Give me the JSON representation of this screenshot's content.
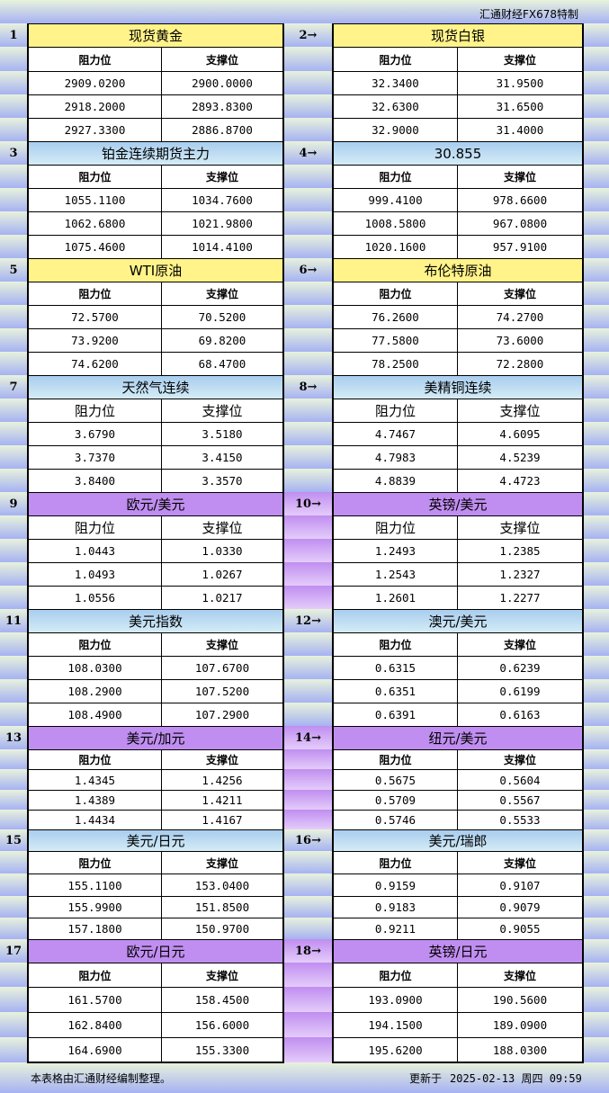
{
  "brand": "汇通财经FX678特制",
  "footer": {
    "note": "本表格由汇通财经编制整理。",
    "updated_label": "更新于",
    "updated_value": "2025-02-13 周四 09:59"
  },
  "headers": {
    "resistance": "阻力位",
    "support": "支撑位"
  },
  "colors": {
    "yellow": "#fff389",
    "blue": "#a9cdee",
    "purple": "#c08ef0",
    "row_gradient_top": "#e8f2dc",
    "row_gradient_bottom": "#a6b2f2"
  },
  "sections": [
    {
      "theme": "yellow",
      "left": {
        "num": "1",
        "title": "现货黄金",
        "rows": [
          [
            "2909.0200",
            "2900.0000"
          ],
          [
            "2918.2000",
            "2893.8300"
          ],
          [
            "2927.3300",
            "2886.8700"
          ]
        ]
      },
      "right": {
        "num": "2→",
        "title": "现货白银",
        "rows": [
          [
            "32.3400",
            "31.9500"
          ],
          [
            "32.6300",
            "31.6500"
          ],
          [
            "32.9000",
            "31.4000"
          ]
        ]
      }
    },
    {
      "theme": "blue",
      "left": {
        "num": "3",
        "title": "铂金连续期货主力",
        "rows": [
          [
            "1055.1100",
            "1034.7600"
          ],
          [
            "1062.6800",
            "1021.9800"
          ],
          [
            "1075.4600",
            "1014.4100"
          ]
        ]
      },
      "right": {
        "num": "4→",
        "title": "30.855",
        "rows": [
          [
            "999.4100",
            "978.6600"
          ],
          [
            "1008.5800",
            "967.0800"
          ],
          [
            "1020.1600",
            "957.9100"
          ]
        ]
      }
    },
    {
      "theme": "yellow",
      "left": {
        "num": "5",
        "title": "WTI原油",
        "rows": [
          [
            "72.5700",
            "70.5200"
          ],
          [
            "73.9200",
            "69.8200"
          ],
          [
            "74.6200",
            "68.4700"
          ]
        ]
      },
      "right": {
        "num": "6→",
        "title": "布伦特原油",
        "rows": [
          [
            "76.2600",
            "74.2700"
          ],
          [
            "77.5800",
            "73.6000"
          ],
          [
            "78.2500",
            "72.2800"
          ]
        ]
      }
    },
    {
      "theme": "blue",
      "left": {
        "num": "7",
        "title": "天然气连续",
        "rows": [
          [
            "3.6790",
            "3.5180"
          ],
          [
            "3.7370",
            "3.4150"
          ],
          [
            "3.8400",
            "3.3570"
          ]
        ]
      },
      "right": {
        "num": "8→",
        "title": "美精铜连续",
        "rows": [
          [
            "4.7467",
            "4.6095"
          ],
          [
            "4.7983",
            "4.5239"
          ],
          [
            "4.8839",
            "4.4723"
          ]
        ]
      }
    },
    {
      "theme": "purple",
      "left": {
        "num": "9",
        "title": "欧元/美元",
        "rows": [
          [
            "1.0443",
            "1.0330"
          ],
          [
            "1.0493",
            "1.0267"
          ],
          [
            "1.0556",
            "1.0217"
          ]
        ]
      },
      "right": {
        "num": "10→",
        "title": "英镑/美元",
        "rows": [
          [
            "1.2493",
            "1.2385"
          ],
          [
            "1.2543",
            "1.2327"
          ],
          [
            "1.2601",
            "1.2277"
          ]
        ]
      }
    },
    {
      "theme": "blue",
      "left": {
        "num": "11",
        "title": "美元指数",
        "rows": [
          [
            "108.0300",
            "107.6700"
          ],
          [
            "108.2900",
            "107.5200"
          ],
          [
            "108.4900",
            "107.2900"
          ]
        ]
      },
      "right": {
        "num": "12→",
        "title": "澳元/美元",
        "rows": [
          [
            "0.6315",
            "0.6239"
          ],
          [
            "0.6351",
            "0.6199"
          ],
          [
            "0.6391",
            "0.6163"
          ]
        ]
      }
    },
    {
      "theme": "purple",
      "left": {
        "num": "13",
        "title": "美元/加元",
        "rows": [
          [
            "1.4345",
            "1.4256"
          ],
          [
            "1.4389",
            "1.4211"
          ],
          [
            "1.4434",
            "1.4167"
          ]
        ]
      },
      "right": {
        "num": "14→",
        "title": "纽元/美元",
        "rows": [
          [
            "0.5675",
            "0.5604"
          ],
          [
            "0.5709",
            "0.5567"
          ],
          [
            "0.5746",
            "0.5533"
          ]
        ]
      }
    },
    {
      "theme": "blue",
      "left": {
        "num": "15",
        "title": "美元/日元",
        "rows": [
          [
            "155.1100",
            "153.0400"
          ],
          [
            "155.9900",
            "151.8500"
          ],
          [
            "157.1800",
            "150.9700"
          ]
        ]
      },
      "right": {
        "num": "16→",
        "title": "美元/瑞郎",
        "rows": [
          [
            "0.9159",
            "0.9107"
          ],
          [
            "0.9183",
            "0.9079"
          ],
          [
            "0.9211",
            "0.9055"
          ]
        ]
      }
    },
    {
      "theme": "purple",
      "left": {
        "num": "17",
        "title": "欧元/日元",
        "rows": [
          [
            "161.5700",
            "158.4500"
          ],
          [
            "162.8400",
            "156.6000"
          ],
          [
            "164.6900",
            "155.3300"
          ]
        ]
      },
      "right": {
        "num": "18→",
        "title": "英镑/日元",
        "rows": [
          [
            "193.0900",
            "190.5600"
          ],
          [
            "194.1500",
            "189.0900"
          ],
          [
            "195.6200",
            "188.0300"
          ]
        ]
      }
    }
  ]
}
